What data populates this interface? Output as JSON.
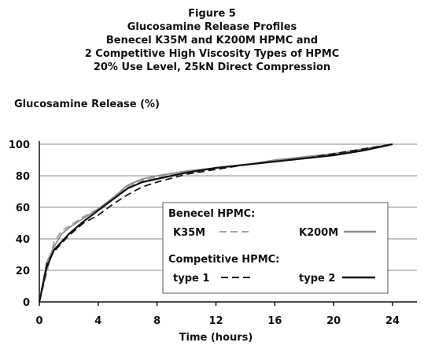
{
  "chart_data": {
    "type": "line",
    "title_lines": [
      "Figure 5",
      "Glucosamine Release Profiles",
      "Benecel K35M and K200M HPMC and",
      "2 Competitive High Viscosity Types of HPMC",
      "20% Use Level, 25kN Direct Compression"
    ],
    "ylabel": "Glucosamine Release (%)",
    "xlabel": "Time (hours)",
    "xlim": [
      0,
      24
    ],
    "ylim": [
      0,
      100
    ],
    "x_ticks": [
      0,
      4,
      8,
      12,
      16,
      20,
      24
    ],
    "y_ticks": [
      0,
      20,
      40,
      60,
      80,
      100
    ],
    "grid": "horizontal",
    "legend": {
      "placement": "bottom-right",
      "group1_title": "Benecel  HPMC:",
      "group2_title": "Competitive HPMC:"
    },
    "series": [
      {
        "name": "K35M",
        "color": "#a6a6a6",
        "dash": "dashed",
        "x": [
          0,
          0.5,
          1,
          1.5,
          2,
          3,
          4,
          5,
          6,
          7,
          8,
          10,
          12,
          14,
          16,
          18,
          20,
          22,
          24
        ],
        "y": [
          0,
          18,
          38,
          45,
          48,
          54,
          59,
          66,
          73,
          77,
          79,
          82,
          85,
          87,
          89,
          92,
          94,
          97,
          100
        ]
      },
      {
        "name": "K200M",
        "color": "#8c8c8c",
        "dash": "solid",
        "x": [
          0,
          0.5,
          1,
          1.5,
          2,
          3,
          4,
          5,
          6,
          7,
          8,
          10,
          12,
          14,
          16,
          18,
          20,
          22,
          24
        ],
        "y": [
          0,
          25,
          35,
          43,
          47,
          53,
          59,
          66,
          74,
          78,
          80,
          83,
          85,
          87,
          90,
          92,
          94,
          97,
          100
        ]
      },
      {
        "name": "type 1",
        "color": "#1a1a1a",
        "dash": "dashed",
        "x": [
          0,
          0.5,
          1,
          1.5,
          2,
          3,
          4,
          5,
          6,
          7,
          8,
          10,
          12,
          14,
          16,
          18,
          20,
          22,
          24
        ],
        "y": [
          0,
          24,
          32,
          37,
          42,
          50,
          55,
          62,
          68,
          73,
          76,
          81,
          84,
          87,
          89,
          91,
          94,
          97,
          100
        ]
      },
      {
        "name": "type 2",
        "color": "#111111",
        "dash": "solid",
        "x": [
          0,
          0.5,
          1,
          1.5,
          2,
          3,
          4,
          5,
          6,
          7,
          8,
          10,
          12,
          14,
          16,
          18,
          20,
          22,
          24
        ],
        "y": [
          0,
          22,
          33,
          38,
          43,
          51,
          58,
          65,
          72,
          76,
          78,
          82,
          85,
          87,
          89,
          91,
          93,
          96,
          100
        ]
      }
    ]
  }
}
